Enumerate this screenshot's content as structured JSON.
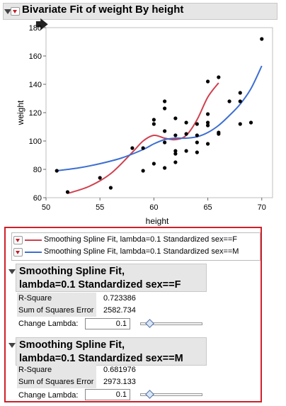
{
  "outline": {
    "title": "Bivariate Fit of weight By height"
  },
  "chart_data": {
    "type": "scatter",
    "xlabel": "height",
    "ylabel": "weight",
    "xlim": [
      50,
      71
    ],
    "ylim": [
      60,
      180
    ],
    "xticks": [
      50,
      55,
      60,
      65,
      70
    ],
    "yticks": [
      60,
      80,
      100,
      120,
      140,
      160,
      180
    ],
    "points": [
      [
        51,
        79
      ],
      [
        52,
        64
      ],
      [
        55,
        74
      ],
      [
        56,
        67
      ],
      [
        58,
        95
      ],
      [
        59,
        79
      ],
      [
        59,
        95
      ],
      [
        60,
        84
      ],
      [
        60,
        112
      ],
      [
        60,
        115
      ],
      [
        61,
        81
      ],
      [
        61,
        99
      ],
      [
        61,
        107
      ],
      [
        61,
        123
      ],
      [
        61,
        128
      ],
      [
        62,
        85
      ],
      [
        62,
        91
      ],
      [
        62,
        93
      ],
      [
        62,
        104
      ],
      [
        62,
        116
      ],
      [
        63,
        93
      ],
      [
        63,
        105
      ],
      [
        63,
        113
      ],
      [
        64,
        92
      ],
      [
        64,
        99
      ],
      [
        64,
        104
      ],
      [
        64,
        112
      ],
      [
        65,
        98
      ],
      [
        65,
        111
      ],
      [
        65,
        113
      ],
      [
        65,
        119
      ],
      [
        65,
        142
      ],
      [
        66,
        105
      ],
      [
        66,
        106
      ],
      [
        66,
        145
      ],
      [
        67,
        128
      ],
      [
        68,
        112
      ],
      [
        68,
        128
      ],
      [
        68,
        134
      ],
      [
        69,
        113
      ],
      [
        70,
        172
      ]
    ],
    "series": [
      {
        "name": "Smoothing Spline Fit, lambda=0.1 Standardized sex==F",
        "color": "#d0404e",
        "x": [
          52,
          54,
          56,
          58,
          59,
          60,
          61,
          62,
          63,
          64,
          65,
          66
        ],
        "y": [
          63,
          68,
          77,
          92,
          100,
          104,
          102,
          101,
          104,
          115,
          131,
          141
        ]
      },
      {
        "name": "Smoothing Spline Fit, lambda=0.1 Standardized sex==M",
        "color": "#3d6fd2",
        "x": [
          51,
          53,
          55,
          57,
          59,
          60,
          61,
          62,
          63,
          64,
          65,
          66,
          67,
          68,
          69,
          70
        ],
        "y": [
          79,
          81,
          84,
          88,
          94,
          98,
          101,
          102,
          102,
          103,
          106,
          111,
          118,
          126,
          137,
          153
        ]
      }
    ]
  },
  "legend": {
    "items": [
      {
        "label": "Smoothing Spline Fit, lambda=0.1 Standardized sex==F",
        "color": "#d0404e"
      },
      {
        "label": "Smoothing Spline Fit, lambda=0.1 Standardized sex==M",
        "color": "#3d6fd2"
      }
    ]
  },
  "fits": [
    {
      "title_line1": "Smoothing Spline Fit,",
      "title_line2": "lambda=0.1 Standardized sex==F",
      "rsquare_label": "R-Square",
      "rsquare": "0.723386",
      "sse_label": "Sum of Squares Error",
      "sse": "2582.734",
      "lambda_label": "Change Lambda:",
      "lambda": "0.1"
    },
    {
      "title_line1": "Smoothing Spline Fit,",
      "title_line2": "lambda=0.1 Standardized sex==M",
      "rsquare_label": "R-Square",
      "rsquare": "0.681976",
      "sse_label": "Sum of Squares Error",
      "sse": "2973.133",
      "lambda_label": "Change Lambda:",
      "lambda": "0.1"
    }
  ]
}
